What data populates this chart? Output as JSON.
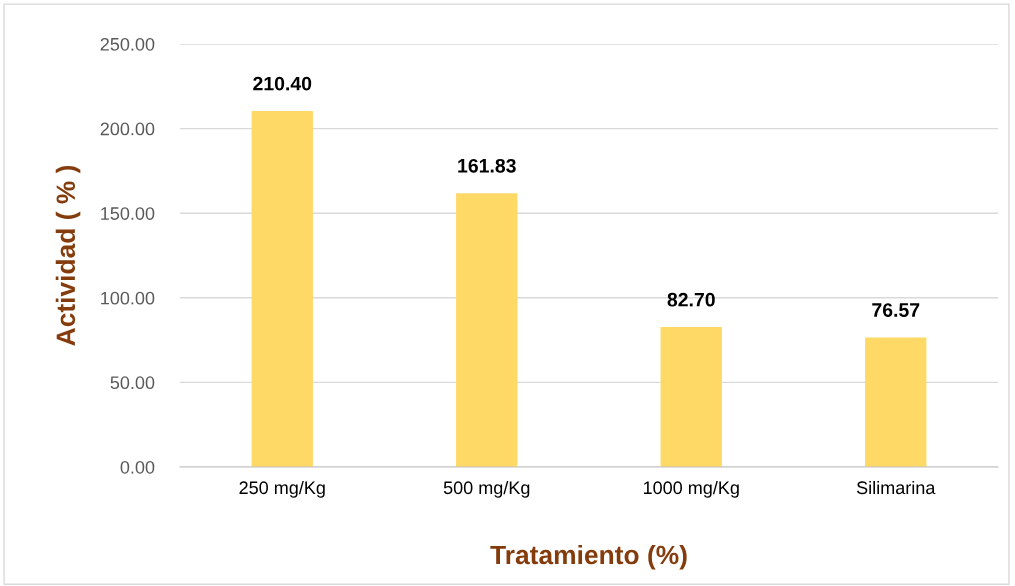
{
  "chart_data": {
    "type": "bar",
    "xlabel": "Tratamiento (%)",
    "ylabel": "Actividad ( % )",
    "categories": [
      "250 mg/Kg",
      "500 mg/Kg",
      "1000 mg/Kg",
      "Silimarina"
    ],
    "values": [
      210.4,
      161.83,
      82.7,
      76.57
    ],
    "value_labels": [
      "210.40",
      "161.83",
      "82.70",
      "76.57"
    ],
    "color": "#ffd966",
    "ylim": [
      0,
      250
    ],
    "yticks": [
      {
        "value": 0,
        "label": "0.00"
      },
      {
        "value": 50,
        "label": "50.00"
      },
      {
        "value": 100,
        "label": "100.00"
      },
      {
        "value": 150,
        "label": "150.00"
      },
      {
        "value": 200,
        "label": "200.00"
      },
      {
        "value": 250,
        "label": "250.00"
      }
    ],
    "grid": "y"
  }
}
